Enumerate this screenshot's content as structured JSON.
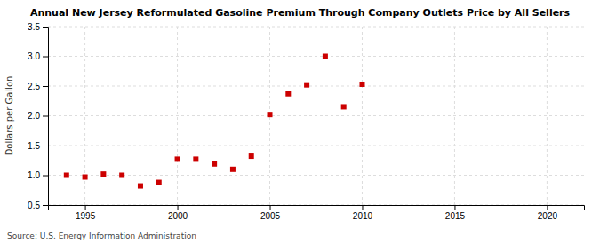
{
  "chart_data": {
    "type": "scatter",
    "title": "Annual New Jersey Reformulated Gasoline Premium Through Company Outlets Price by All Sellers",
    "ylabel": "Dollars per Gallon",
    "source": "Source: U.S. Energy Information Administration",
    "x": [
      1994,
      1995,
      1996,
      1997,
      1998,
      1999,
      2000,
      2001,
      2002,
      2003,
      2004,
      2005,
      2006,
      2007,
      2008,
      2009,
      2010
    ],
    "values": [
      1.0,
      0.97,
      1.02,
      1.0,
      0.82,
      0.88,
      1.27,
      1.27,
      1.19,
      1.1,
      1.32,
      2.02,
      2.37,
      2.52,
      3.0,
      2.15,
      2.53
    ],
    "xlim": [
      1993,
      2022
    ],
    "ylim": [
      0.5,
      3.5
    ],
    "xticks": [
      1995,
      2000,
      2005,
      2010,
      2015,
      2020
    ],
    "yticks": [
      0.5,
      {
        "value": 1.0,
        "label": "1.0"
      },
      1.5,
      {
        "value": 2.0,
        "label": "2.0"
      },
      2.5,
      {
        "value": 3.0,
        "label": "3.0"
      },
      3.5
    ],
    "color": "#cc0000",
    "marker": "square",
    "grid": true
  }
}
